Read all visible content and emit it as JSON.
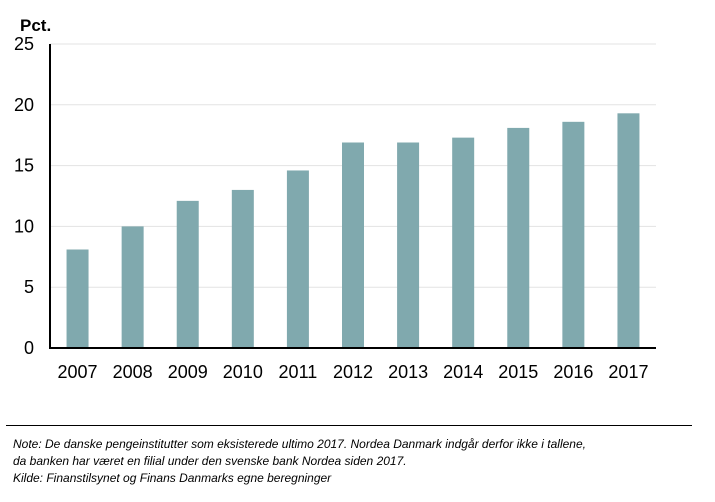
{
  "chart_data": {
    "type": "bar",
    "ylabel": "Pct.",
    "xlabel": "",
    "categories": [
      "2007",
      "2008",
      "2009",
      "2010",
      "2011",
      "2012",
      "2013",
      "2014",
      "2015",
      "2016",
      "2017"
    ],
    "values": [
      8.1,
      10.0,
      12.1,
      13.0,
      14.6,
      16.9,
      16.9,
      17.3,
      18.1,
      18.6,
      19.3
    ],
    "ylim": [
      0,
      25
    ],
    "yticks": [
      0,
      5,
      10,
      15,
      20,
      25
    ],
    "grid": true,
    "colors": {
      "bar": "#80a9ae",
      "grid": "#e3e3e3",
      "axis": "#000000"
    }
  },
  "notes": {
    "line1": "Note: De danske pengeinstitutter som eksisterede ultimo 2017. Nordea Danmark indgår derfor ikke i tallene,",
    "line2": "da banken har været en filial under den svenske bank Nordea siden 2017.",
    "line3": "Kilde: Finanstilsynet og Finans Danmarks egne beregninger"
  }
}
